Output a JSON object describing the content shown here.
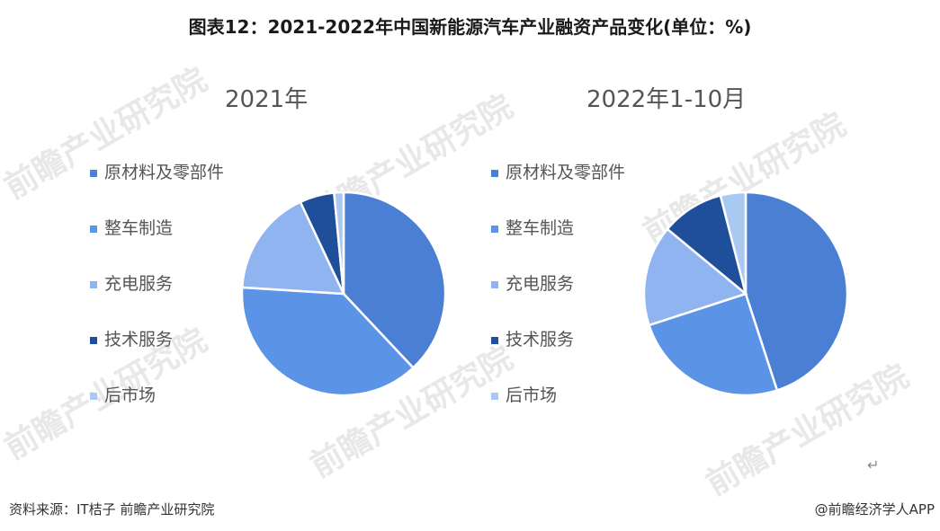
{
  "title": "图表12：2021-2022年中国新能源汽车产业融资产品变化(单位：%)",
  "watermark_text": "前瞻产业研究院",
  "return_mark": "↵",
  "source": "资料来源：IT桔子 前瞻产业研究院",
  "credit": "@前瞻经济学人APP",
  "chart_data": [
    {
      "type": "pie",
      "title": "2021年",
      "categories": [
        "原材料及零部件",
        "整车制造",
        "充电服务",
        "技术服务",
        "后市场"
      ],
      "values": [
        38,
        38,
        17,
        5.5,
        1.5
      ],
      "colors": [
        "#4a7fd4",
        "#5b93e6",
        "#8fb4ef",
        "#1f4f9a",
        "#a9c8f2"
      ],
      "legend_position": "left",
      "start_angle_deg": 0,
      "direction": "clockwise"
    },
    {
      "type": "pie",
      "title": "2022年1-10月",
      "categories": [
        "原材料及零部件",
        "整车制造",
        "充电服务",
        "技术服务",
        "后市场"
      ],
      "values": [
        45,
        25,
        16,
        10,
        4
      ],
      "colors": [
        "#4a7fd4",
        "#5b93e6",
        "#8fb4ef",
        "#1f4f9a",
        "#a9c8f2"
      ],
      "legend_position": "left",
      "start_angle_deg": 0,
      "direction": "clockwise"
    }
  ]
}
